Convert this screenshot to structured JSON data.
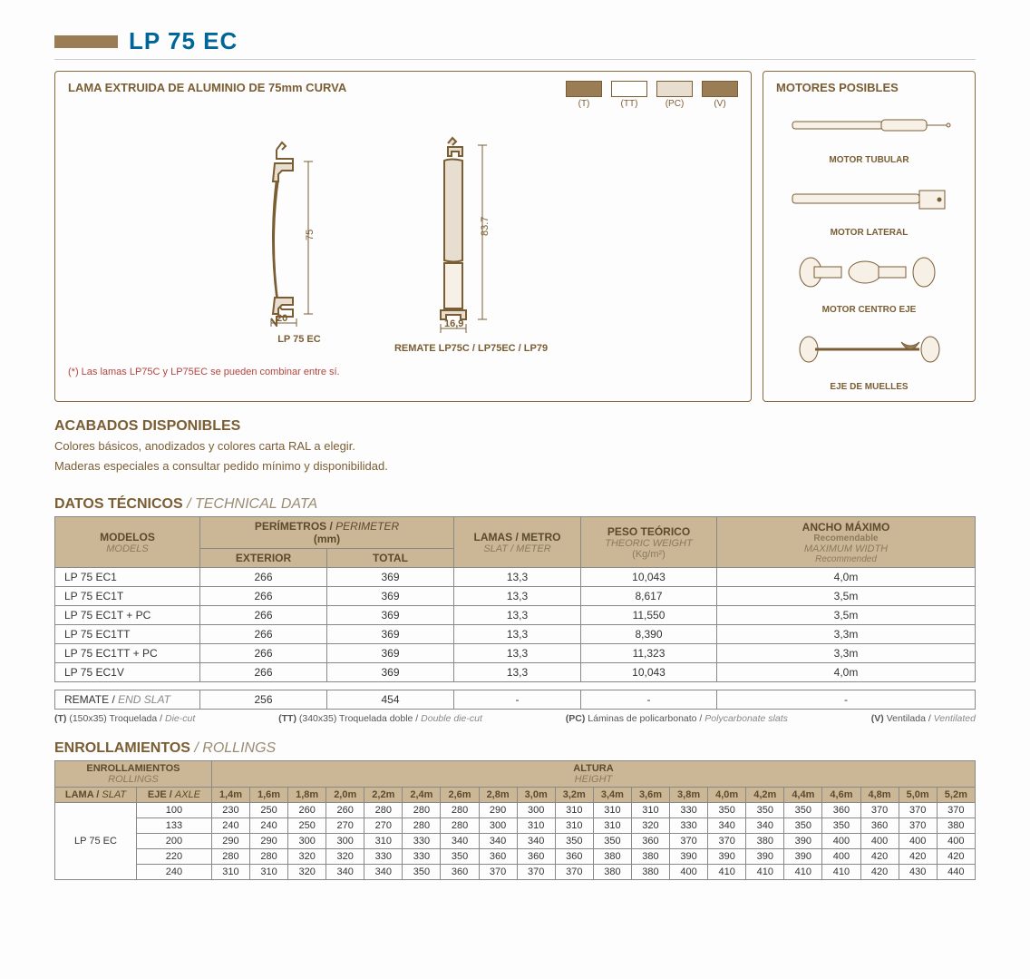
{
  "colors": {
    "accent": "#9a7d55",
    "title": "#006699",
    "brown": "#7b5d33",
    "header_bg": "#cbb795",
    "border": "#88683d"
  },
  "header": {
    "title": "LP 75 EC"
  },
  "lama_panel": {
    "title": "LAMA EXTRUIDA DE ALUMINIO DE 75mm CURVA",
    "swatches": [
      {
        "label": "(T)",
        "class": "swatch-t"
      },
      {
        "label": "(TT)",
        "class": "swatch-tt"
      },
      {
        "label": "(PC)",
        "class": "swatch-pc"
      },
      {
        "label": "(V)",
        "class": "swatch-v"
      }
    ],
    "drawing1": {
      "label": "LP 75 EC",
      "h_dim": "75",
      "w_dim": "20"
    },
    "drawing2": {
      "label": "REMATE LP75C / LP75EC / LP79",
      "h_dim": "83.7",
      "w_dim": "16,9"
    },
    "footnote": "(*) Las lamas LP75C y LP75EC se pueden combinar entre sí."
  },
  "motor_panel": {
    "title": "MOTORES POSIBLES",
    "items": [
      "MOTOR TUBULAR",
      "MOTOR LATERAL",
      "MOTOR CENTRO EJE",
      "EJE DE MUELLES"
    ]
  },
  "acabados": {
    "title": "ACABADOS DISPONIBLES",
    "line1": "Colores básicos, anodizados y colores carta RAL a elegir.",
    "line2": "Maderas especiales a consultar pedido mínimo y disponibilidad."
  },
  "datos": {
    "title": "DATOS TÉCNICOS",
    "title_alt": "/ TECHNICAL DATA",
    "headers": {
      "modelos": "MODELOS",
      "modelos_sub": "MODELS",
      "perimetros": "PERÍMETROS / PERIMETER\n(mm)",
      "exterior": "EXTERIOR",
      "total": "TOTAL",
      "lamas": "LAMAS / METRO",
      "lamas_sub": "SLAT / METER",
      "peso": "PESO TEÓRICO",
      "peso_sub": "THEORIC WEIGHT",
      "peso_unit": "(Kg/m²)",
      "ancho": "ANCHO MÁXIMO",
      "ancho_sub1": "Recomendable",
      "ancho_sub2": "MAXIMUM WIDTH",
      "ancho_sub3": "Recommended"
    },
    "rows": [
      {
        "model": "LP 75 EC1",
        "ext": "266",
        "tot": "369",
        "lamas": "13,3",
        "peso": "10,043",
        "ancho": "4,0m"
      },
      {
        "model": "LP 75 EC1T",
        "ext": "266",
        "tot": "369",
        "lamas": "13,3",
        "peso": "8,617",
        "ancho": "3,5m"
      },
      {
        "model": "LP 75 EC1T + PC",
        "ext": "266",
        "tot": "369",
        "lamas": "13,3",
        "peso": "11,550",
        "ancho": "3,5m"
      },
      {
        "model": "LP 75 EC1TT",
        "ext": "266",
        "tot": "369",
        "lamas": "13,3",
        "peso": "8,390",
        "ancho": "3,3m"
      },
      {
        "model": "LP 75 EC1TT + PC",
        "ext": "266",
        "tot": "369",
        "lamas": "13,3",
        "peso": "11,323",
        "ancho": "3,3m"
      },
      {
        "model": "LP 75 EC1V",
        "ext": "266",
        "tot": "369",
        "lamas": "13,3",
        "peso": "10,043",
        "ancho": "4,0m"
      }
    ],
    "remate": {
      "label": "REMATE / ",
      "label_alt": "END SLAT",
      "ext": "256",
      "tot": "454",
      "lamas": "-",
      "peso": "-",
      "ancho": "-"
    },
    "legend": [
      {
        "code": "(T)",
        "es": "(150x35) Troquelada / ",
        "en": "Die-cut"
      },
      {
        "code": "(TT)",
        "es": "(340x35) Troquelada doble / ",
        "en": "Double die-cut"
      },
      {
        "code": "(PC)",
        "es": "Láminas de policarbonato / ",
        "en": "Polycarbonate slats"
      },
      {
        "code": "(V)",
        "es": "Ventilada / ",
        "en": "Ventilated"
      }
    ]
  },
  "rollings": {
    "title": "ENROLLAMIENTOS",
    "title_alt": "/ ROLLINGS",
    "h_enroll": "ENROLLAMIENTOS",
    "h_enroll_sub": "ROLLINGS",
    "h_altura": "ALTURA",
    "h_altura_sub": "HEIGHT",
    "h_lama": "LAMA / ",
    "h_lama_alt": "SLAT",
    "h_eje": "EJE / ",
    "h_eje_alt": "AXLE",
    "heights": [
      "1,4m",
      "1,6m",
      "1,8m",
      "2,0m",
      "2,2m",
      "2,4m",
      "2,6m",
      "2,8m",
      "3,0m",
      "3,2m",
      "3,4m",
      "3,6m",
      "3,8m",
      "4,0m",
      "4,2m",
      "4,4m",
      "4,6m",
      "4,8m",
      "5,0m",
      "5,2m"
    ],
    "lama": "LP 75 EC",
    "axles": [
      "100",
      "133",
      "200",
      "220",
      "240"
    ],
    "data": [
      [
        "230",
        "250",
        "260",
        "260",
        "280",
        "280",
        "280",
        "290",
        "300",
        "310",
        "310",
        "310",
        "330",
        "350",
        "350",
        "350",
        "360",
        "370",
        "370",
        "370"
      ],
      [
        "240",
        "240",
        "250",
        "270",
        "270",
        "280",
        "280",
        "300",
        "310",
        "310",
        "310",
        "320",
        "330",
        "340",
        "340",
        "350",
        "350",
        "360",
        "370",
        "380"
      ],
      [
        "290",
        "290",
        "300",
        "300",
        "310",
        "330",
        "340",
        "340",
        "340",
        "350",
        "350",
        "360",
        "370",
        "370",
        "380",
        "390",
        "400",
        "400",
        "400",
        "400"
      ],
      [
        "280",
        "280",
        "320",
        "320",
        "330",
        "330",
        "350",
        "360",
        "360",
        "360",
        "380",
        "380",
        "390",
        "390",
        "390",
        "390",
        "400",
        "420",
        "420",
        "420"
      ],
      [
        "310",
        "310",
        "320",
        "340",
        "340",
        "350",
        "360",
        "370",
        "370",
        "370",
        "380",
        "380",
        "400",
        "410",
        "410",
        "410",
        "410",
        "420",
        "430",
        "440"
      ]
    ]
  }
}
